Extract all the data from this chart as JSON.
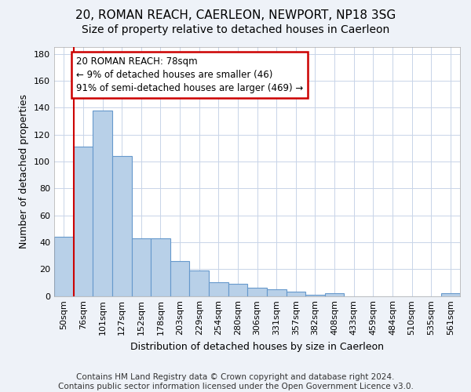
{
  "title1": "20, ROMAN REACH, CAERLEON, NEWPORT, NP18 3SG",
  "title2": "Size of property relative to detached houses in Caerleon",
  "xlabel": "Distribution of detached houses by size in Caerleon",
  "ylabel": "Number of detached properties",
  "categories": [
    "50sqm",
    "76sqm",
    "101sqm",
    "127sqm",
    "152sqm",
    "178sqm",
    "203sqm",
    "229sqm",
    "254sqm",
    "280sqm",
    "306sqm",
    "331sqm",
    "357sqm",
    "382sqm",
    "408sqm",
    "433sqm",
    "459sqm",
    "484sqm",
    "510sqm",
    "535sqm",
    "561sqm"
  ],
  "values": [
    44,
    111,
    138,
    104,
    43,
    43,
    26,
    19,
    10,
    9,
    6,
    5,
    3,
    1,
    2,
    0,
    0,
    0,
    0,
    0,
    2
  ],
  "bar_color": "#b8d0e8",
  "bar_edge_color": "#6699cc",
  "highlight_color": "#cc0000",
  "annotation_text": "20 ROMAN REACH: 78sqm\n← 9% of detached houses are smaller (46)\n91% of semi-detached houses are larger (469) →",
  "annotation_box_color": "#ffffff",
  "annotation_box_edge": "#cc0000",
  "ylim": [
    0,
    185
  ],
  "yticks": [
    0,
    20,
    40,
    60,
    80,
    100,
    120,
    140,
    160,
    180
  ],
  "footer": "Contains HM Land Registry data © Crown copyright and database right 2024.\nContains public sector information licensed under the Open Government Licence v3.0.",
  "bg_color": "#eef2f8",
  "plot_bg_color": "#ffffff",
  "grid_color": "#c8d4e8",
  "title1_fontsize": 11,
  "title2_fontsize": 10,
  "xlabel_fontsize": 9,
  "ylabel_fontsize": 9,
  "tick_fontsize": 8,
  "footer_fontsize": 7.5
}
